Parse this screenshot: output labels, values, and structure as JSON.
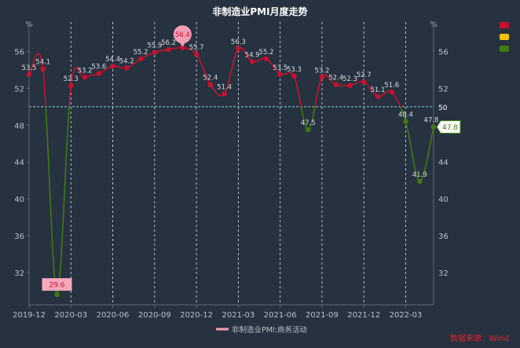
{
  "chart_data": {
    "type": "line",
    "title": "非制造业PMI月度走势",
    "y_unit": "%",
    "ylim": [
      28.5,
      58
    ],
    "yticks": [
      32,
      36,
      40,
      44,
      48,
      52,
      56
    ],
    "reference_line": 50,
    "x_ticks": [
      "2019-12",
      "2020-03",
      "2020-06",
      "2020-09",
      "2020-12",
      "2021-03",
      "2021-06",
      "2021-09",
      "2021-12",
      "2022-03"
    ],
    "x": [
      "2019-12",
      "2020-01",
      "2020-02",
      "2020-03",
      "2020-04",
      "2020-05",
      "2020-06",
      "2020-07",
      "2020-08",
      "2020-09",
      "2020-10",
      "2020-11",
      "2020-12",
      "2021-01",
      "2021-02",
      "2021-03",
      "2021-04",
      "2021-05",
      "2021-06",
      "2021-07",
      "2021-08",
      "2021-09",
      "2021-10",
      "2021-11",
      "2021-12",
      "2022-01",
      "2022-02",
      "2022-03",
      "2022-04",
      "2022-05"
    ],
    "series": [
      {
        "name": "非制造业PMI:商务活动",
        "values": [
          53.5,
          54.1,
          29.6,
          52.3,
          53.2,
          53.6,
          54.4,
          54.2,
          55.2,
          55.9,
          56.2,
          56.4,
          55.7,
          52.4,
          51.4,
          56.3,
          54.9,
          55.2,
          53.5,
          53.3,
          47.5,
          53.2,
          52.4,
          52.3,
          52.7,
          51.1,
          51.6,
          48.4,
          41.9,
          47.8
        ]
      }
    ],
    "value_labels": [
      "53.5",
      "54.1",
      "29.6",
      "52.3",
      "53.2",
      "53.6",
      "54.4",
      "54.2",
      "55.2",
      "55.9",
      "56.2",
      "56.4",
      "55.7",
      "52.4",
      "51.4",
      "56.3",
      "54.9",
      "55.2",
      "53.5",
      "53.3",
      "47.5",
      "53.2",
      "52.4",
      "52.3",
      "52.7",
      "51.1",
      "51.6",
      "48.4",
      "41.9",
      "47.8"
    ],
    "highlight_max_label": "56.4",
    "highlight_min_label": "29.6",
    "highlight_last_label": "47.8",
    "colors": {
      "above": "#c8102e",
      "below": "#3f7a12",
      "max_bubble": "#f3a0b5",
      "min_box": "#f7a8bd",
      "grid": "#ffffff",
      "ref": "#8fd0d6",
      "text": "#d6dbe0",
      "title": "#ffffff",
      "legend_line": "#f3a0b5",
      "swatch1": "#c8102e",
      "swatch2": "#f2c200",
      "swatch3": "#3f7a12"
    }
  },
  "legend": {
    "label": "非制造业PMI:商务活动"
  },
  "source": "数据来源：Wind"
}
